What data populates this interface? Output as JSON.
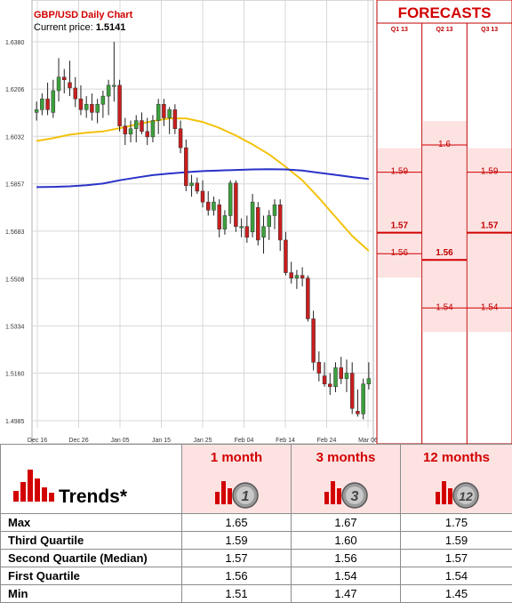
{
  "chart": {
    "title": "GBP/USD Daily Chart",
    "current_price_label": "Current price:",
    "current_price": "1.5141"
  },
  "forecasts": {
    "title": "FORECASTS",
    "quarters": [
      "Q1 13",
      "Q2 13",
      "Q3 13"
    ],
    "columns": [
      {
        "quarter": "Q1 13",
        "max": null,
        "q3": 1.59,
        "median": 1.57,
        "q1": 1.56,
        "min": null,
        "labels": {
          "q3": "1.59",
          "median": "1.57",
          "q1": "1.56"
        }
      },
      {
        "quarter": "Q2 13",
        "max": null,
        "q3": 1.6,
        "median": 1.56,
        "q1": 1.54,
        "min": null,
        "labels": {
          "q3": "1.6",
          "median": "1.56",
          "q1": "1.54"
        }
      },
      {
        "quarter": "Q3 13",
        "max": null,
        "q3": 1.59,
        "median": 1.57,
        "q1": 1.54,
        "min": null,
        "labels": {
          "q3": "1.59",
          "median": "1.57",
          "q1": "1.54"
        }
      }
    ]
  },
  "chart_data": {
    "type": "candlestick",
    "title": "GBP/USD Daily Chart",
    "ylim": [
      1.4985,
      1.638
    ],
    "y_ticks": [
      "1.6380",
      "1.6206",
      "1.6032",
      "1.5857",
      "1.5683",
      "1.5508",
      "1.5334",
      "1.5160",
      "1.4985"
    ],
    "x_ticks": [
      "Dec 16",
      "Dec 26",
      "Jan 05",
      "Jan 15",
      "Jan 25",
      "Feb 04",
      "Feb 14",
      "Feb 24",
      "Mar 06"
    ],
    "grid": true,
    "candles": [
      [
        1.612,
        1.616,
        1.609,
        1.613
      ],
      [
        1.613,
        1.619,
        1.611,
        1.617
      ],
      [
        1.617,
        1.623,
        1.611,
        1.613
      ],
      [
        1.612,
        1.624,
        1.61,
        1.62
      ],
      [
        1.62,
        1.632,
        1.616,
        1.625
      ],
      [
        1.625,
        1.628,
        1.619,
        1.624
      ],
      [
        1.623,
        1.631,
        1.618,
        1.621
      ],
      [
        1.621,
        1.625,
        1.614,
        1.617
      ],
      [
        1.617,
        1.622,
        1.611,
        1.613
      ],
      [
        1.613,
        1.618,
        1.61,
        1.615
      ],
      [
        1.615,
        1.619,
        1.609,
        1.612
      ],
      [
        1.612,
        1.617,
        1.608,
        1.615
      ],
      [
        1.615,
        1.62,
        1.61,
        1.618
      ],
      [
        1.618,
        1.624,
        1.611,
        1.622
      ],
      [
        1.622,
        1.638,
        1.616,
        1.622
      ],
      [
        1.622,
        1.624,
        1.605,
        1.607
      ],
      [
        1.607,
        1.61,
        1.6,
        1.604
      ],
      [
        1.604,
        1.609,
        1.601,
        1.606
      ],
      [
        1.606,
        1.611,
        1.601,
        1.609
      ],
      [
        1.609,
        1.612,
        1.604,
        1.605
      ],
      [
        1.605,
        1.61,
        1.6,
        1.603
      ],
      [
        1.603,
        1.611,
        1.601,
        1.609
      ],
      [
        1.609,
        1.617,
        1.604,
        1.615
      ],
      [
        1.615,
        1.617,
        1.607,
        1.61
      ],
      [
        1.61,
        1.614,
        1.604,
        1.613
      ],
      [
        1.613,
        1.615,
        1.604,
        1.606
      ],
      [
        1.606,
        1.609,
        1.597,
        1.599
      ],
      [
        1.599,
        1.602,
        1.583,
        1.585
      ],
      [
        1.585,
        1.589,
        1.581,
        1.586
      ],
      [
        1.586,
        1.588,
        1.582,
        1.583
      ],
      [
        1.583,
        1.587,
        1.577,
        1.579
      ],
      [
        1.579,
        1.583,
        1.574,
        1.576
      ],
      [
        1.576,
        1.581,
        1.574,
        1.579
      ],
      [
        1.578,
        1.58,
        1.566,
        1.569
      ],
      [
        1.569,
        1.576,
        1.567,
        1.574
      ],
      [
        1.574,
        1.587,
        1.571,
        1.586
      ],
      [
        1.586,
        1.587,
        1.568,
        1.57
      ],
      [
        1.57,
        1.573,
        1.566,
        1.57
      ],
      [
        1.57,
        1.574,
        1.564,
        1.566
      ],
      [
        1.568,
        1.582,
        1.566,
        1.579
      ],
      [
        1.577,
        1.579,
        1.563,
        1.565
      ],
      [
        1.566,
        1.574,
        1.56,
        1.57
      ],
      [
        1.57,
        1.576,
        1.565,
        1.574
      ],
      [
        1.574,
        1.58,
        1.569,
        1.578
      ],
      [
        1.578,
        1.58,
        1.561,
        1.565
      ],
      [
        1.565,
        1.568,
        1.552,
        1.553
      ],
      [
        1.553,
        1.557,
        1.549,
        1.551
      ],
      [
        1.551,
        1.554,
        1.547,
        1.552
      ],
      [
        1.552,
        1.555,
        1.548,
        1.551
      ],
      [
        1.551,
        1.552,
        1.535,
        1.536
      ],
      [
        1.536,
        1.539,
        1.517,
        1.52
      ],
      [
        1.52,
        1.524,
        1.513,
        1.516
      ],
      [
        1.515,
        1.52,
        1.511,
        1.512
      ],
      [
        1.512,
        1.516,
        1.508,
        1.511
      ],
      [
        1.511,
        1.52,
        1.509,
        1.518
      ],
      [
        1.518,
        1.522,
        1.512,
        1.514
      ],
      [
        1.514,
        1.521,
        1.509,
        1.516
      ],
      [
        1.516,
        1.52,
        1.501,
        1.503
      ],
      [
        1.502,
        1.51,
        1.5,
        1.501
      ],
      [
        1.501,
        1.514,
        1.499,
        1.512
      ],
      [
        1.512,
        1.52,
        1.51,
        1.514
      ]
    ],
    "series": [
      {
        "color": "#f4c20d",
        "values": [
          [
            0,
            1.6015
          ],
          [
            3,
            1.6025
          ],
          [
            6,
            1.6038
          ],
          [
            9,
            1.6045
          ],
          [
            12,
            1.605
          ],
          [
            15,
            1.6062
          ],
          [
            18,
            1.6075
          ],
          [
            21,
            1.6088
          ],
          [
            24,
            1.6098
          ],
          [
            27,
            1.6098
          ],
          [
            30,
            1.6085
          ],
          [
            33,
            1.6063
          ],
          [
            36,
            1.6035
          ],
          [
            39,
            1.6002
          ],
          [
            42,
            1.5965
          ],
          [
            45,
            1.592
          ],
          [
            48,
            1.587
          ],
          [
            51,
            1.5805
          ],
          [
            54,
            1.5735
          ],
          [
            57,
            1.5665
          ],
          [
            60,
            1.561
          ]
        ]
      },
      {
        "color": "#2a33c8",
        "values": [
          [
            0,
            1.5845
          ],
          [
            3,
            1.5846
          ],
          [
            6,
            1.5848
          ],
          [
            9,
            1.5852
          ],
          [
            12,
            1.5858
          ],
          [
            15,
            1.587
          ],
          [
            18,
            1.588
          ],
          [
            21,
            1.5889
          ],
          [
            24,
            1.5895
          ],
          [
            27,
            1.59
          ],
          [
            30,
            1.5904
          ],
          [
            33,
            1.5906
          ],
          [
            36,
            1.5908
          ],
          [
            39,
            1.591
          ],
          [
            42,
            1.5911
          ],
          [
            45,
            1.591
          ],
          [
            48,
            1.5906
          ],
          [
            51,
            1.5898
          ],
          [
            54,
            1.589
          ],
          [
            57,
            1.5882
          ],
          [
            60,
            1.5875
          ]
        ]
      }
    ]
  },
  "trends": {
    "title": "Trends*",
    "columns": [
      {
        "label": "1 month",
        "icon_number": "1"
      },
      {
        "label": "3 months",
        "icon_number": "3"
      },
      {
        "label": "12 months",
        "icon_number": "12"
      }
    ],
    "rows": [
      {
        "label": "Max",
        "values": [
          "1.65",
          "1.67",
          "1.75"
        ]
      },
      {
        "label": "Third Quartile",
        "values": [
          "1.59",
          "1.60",
          "1.59"
        ]
      },
      {
        "label": "Second Quartile (Median)",
        "values": [
          "1.57",
          "1.56",
          "1.57"
        ]
      },
      {
        "label": "First Quartile",
        "values": [
          "1.56",
          "1.54",
          "1.54"
        ]
      },
      {
        "label": "Min",
        "values": [
          "1.51",
          "1.47",
          "1.45"
        ]
      }
    ],
    "colors": {
      "accent": "#d20000",
      "header_bg": "#fde2e2"
    }
  }
}
